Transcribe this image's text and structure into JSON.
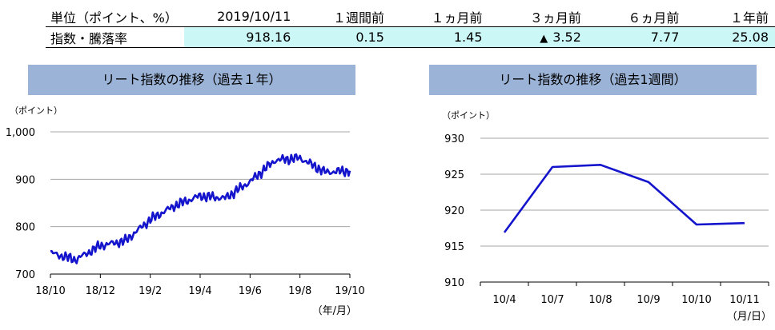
{
  "summary": {
    "headers": [
      "単位（ポイント、%）",
      "2019/10/11",
      "１週間前",
      "１ヵ月前",
      "３ヵ月前",
      "６ヵ月前",
      "１年前"
    ],
    "row_label": "指数・騰落率",
    "values": [
      "918.16",
      "0.15",
      "1.45",
      "3.52",
      "7.77",
      "25.08"
    ],
    "up_marker": "▲"
  },
  "charts": {
    "left": {
      "title": "リート指数の推移（過去１年）",
      "y_unit": "（ポイント）",
      "x_unit": "（年/月）",
      "y_ticks": [
        "700",
        "800",
        "900",
        "1,000"
      ],
      "x_ticks": [
        "18/10",
        "18/12",
        "19/2",
        "19/4",
        "19/6",
        "19/8",
        "19/10"
      ]
    },
    "right": {
      "title": "リート指数の推移（過去1週間）",
      "y_unit": "（ポイント）",
      "x_unit": "（月/日）",
      "y_ticks": [
        "910",
        "915",
        "920",
        "925",
        "930"
      ],
      "x_ticks": [
        "10/4",
        "10/7",
        "10/8",
        "10/9",
        "10/10",
        "10/11"
      ]
    }
  },
  "colors": {
    "line": "#1414cc",
    "grid": "#a6a6a6",
    "title_bg": "#9bb3d6",
    "highlight": "#ccf7f7"
  },
  "chart_data": [
    {
      "type": "line",
      "title": "リート指数の推移（過去１年）",
      "ylabel": "（ポイント）",
      "xlabel": "（年/月）",
      "ylim": [
        700,
        1000
      ],
      "x_ticks": [
        "18/10",
        "18/12",
        "19/2",
        "19/4",
        "19/6",
        "19/8",
        "19/10"
      ],
      "grid": true,
      "series": [
        {
          "x": [
            "18/10",
            "18/11",
            "18/12",
            "19/1",
            "19/2",
            "19/3",
            "19/4",
            "19/5",
            "19/6",
            "19/7",
            "19/8",
            "19/9",
            "19/10"
          ],
          "values": [
            745,
            730,
            760,
            770,
            815,
            845,
            865,
            860,
            895,
            940,
            945,
            915,
            918
          ]
        }
      ]
    },
    {
      "type": "line",
      "title": "リート指数の推移（過去1週間）",
      "ylabel": "（ポイント）",
      "xlabel": "（月/日）",
      "ylim": [
        910,
        930
      ],
      "categories": [
        "10/4",
        "10/7",
        "10/8",
        "10/9",
        "10/10",
        "10/11"
      ],
      "grid": true,
      "series": [
        {
          "values": [
            916.9,
            926.0,
            926.3,
            923.9,
            918.0,
            918.2
          ]
        }
      ]
    }
  ]
}
